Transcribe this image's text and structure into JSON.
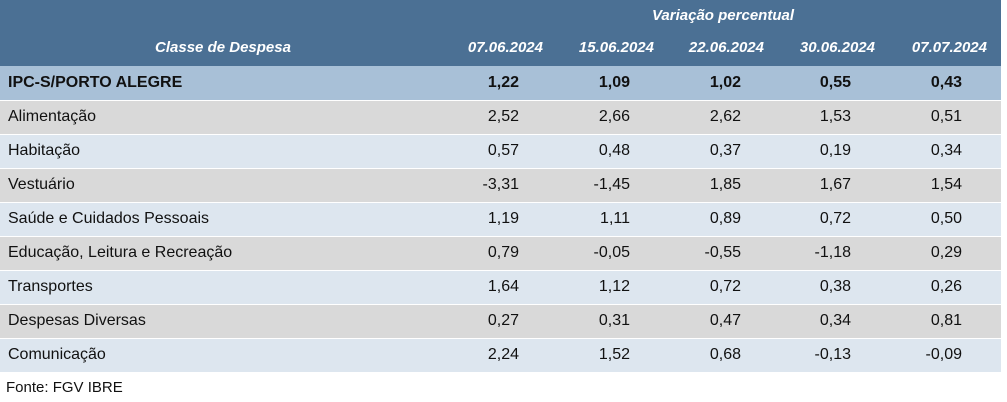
{
  "table": {
    "group_header": "Variação percentual",
    "columns": [
      "Classe de Despesa",
      "07.06.2024",
      "15.06.2024",
      "22.06.2024",
      "30.06.2024",
      "07.07.2024"
    ],
    "rows": [
      [
        "IPC-S/PORTO ALEGRE",
        "1,22",
        "1,09",
        "1,02",
        "0,55",
        "0,43"
      ],
      [
        "Alimentação",
        "2,52",
        "2,66",
        "2,62",
        "1,53",
        "0,51"
      ],
      [
        "Habitação",
        "0,57",
        "0,48",
        "0,37",
        "0,19",
        "0,34"
      ],
      [
        "Vestuário",
        "-3,31",
        "-1,45",
        "1,85",
        "1,67",
        "1,54"
      ],
      [
        "Saúde e Cuidados Pessoais",
        "1,19",
        "1,11",
        "0,89",
        "0,72",
        "0,50"
      ],
      [
        "Educação, Leitura e Recreação",
        "0,79",
        "-0,05",
        "-0,55",
        "-1,18",
        "0,29"
      ],
      [
        "Transportes",
        "1,64",
        "1,12",
        "0,72",
        "0,38",
        "0,26"
      ],
      [
        "Despesas Diversas",
        "0,27",
        "0,31",
        "0,47",
        "0,34",
        "0,81"
      ],
      [
        "Comunicação",
        "2,24",
        "1,52",
        "0,68",
        "-0,13",
        "-0,09"
      ]
    ]
  },
  "footer": "Fonte: FGV IBRE"
}
